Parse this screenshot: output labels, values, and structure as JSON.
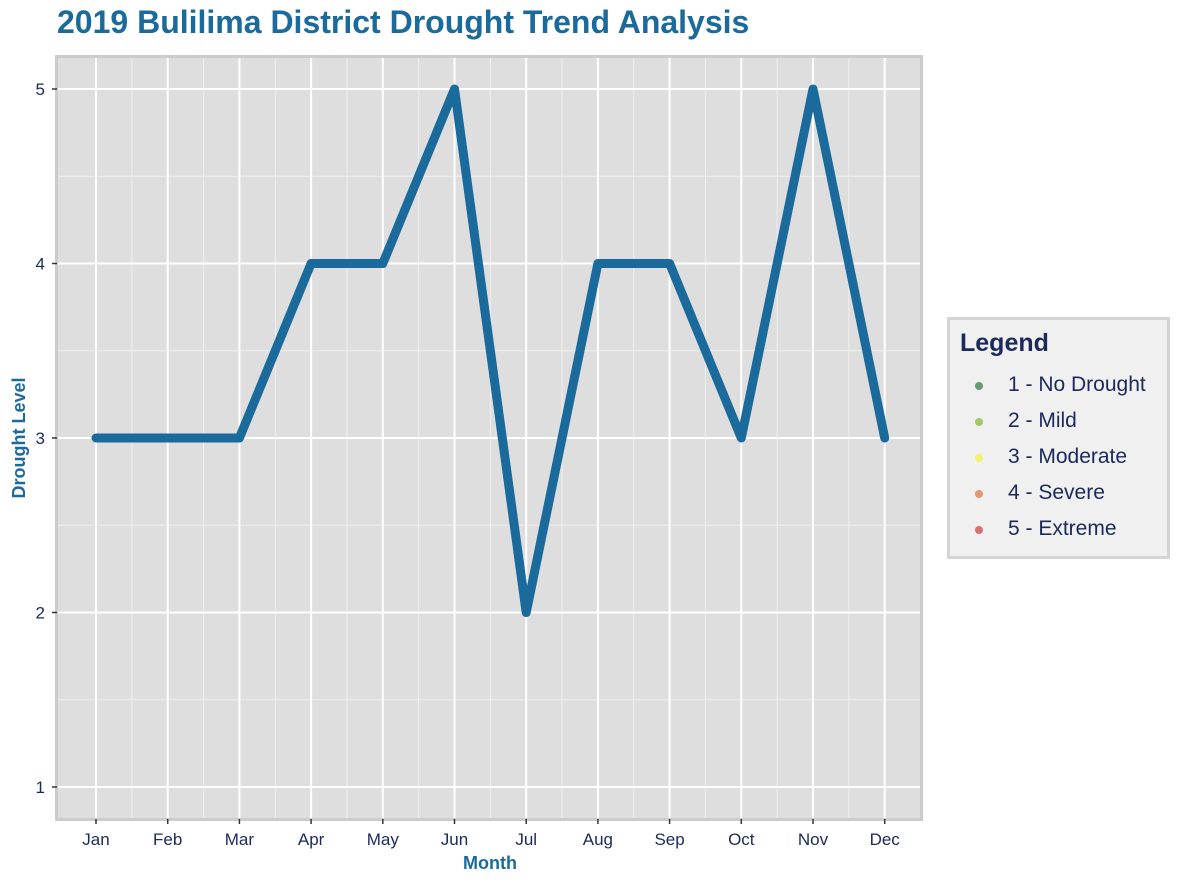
{
  "chart_data": {
    "type": "line",
    "title": "2019 Bulilima District Drought Trend Analysis",
    "xlabel": "Month",
    "ylabel": "Drought Level",
    "categories": [
      "Jan",
      "Feb",
      "Mar",
      "Apr",
      "May",
      "Jun",
      "Jul",
      "Aug",
      "Sep",
      "Oct",
      "Nov",
      "Dec"
    ],
    "values": [
      3,
      3,
      3,
      4,
      4,
      5,
      2,
      4,
      4,
      3,
      5,
      3
    ],
    "ylim": [
      1,
      5
    ],
    "yticks": [
      1,
      2,
      3,
      4,
      5
    ],
    "grid": true,
    "line_color": "#1a6a9c",
    "panel_background": "#dedede",
    "legend": {
      "title": "Legend",
      "position": "right",
      "items": [
        {
          "label": "1 - No Drought",
          "color": "#4f8a5b"
        },
        {
          "label": "2 - Mild",
          "color": "#9bbd4f"
        },
        {
          "label": "3 - Moderate",
          "color": "#f2f25a"
        },
        {
          "label": "4 - Severe",
          "color": "#e0895a"
        },
        {
          "label": "5 - Extreme",
          "color": "#d05a5a"
        }
      ]
    }
  }
}
